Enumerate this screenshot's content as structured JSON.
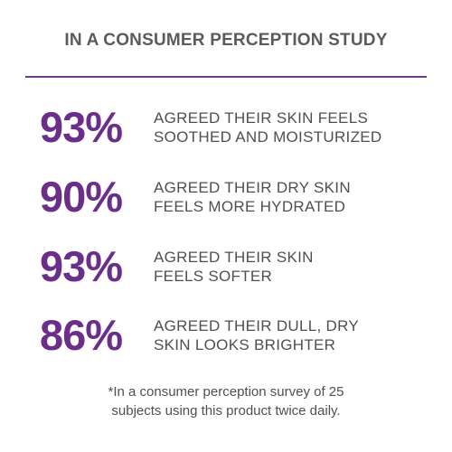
{
  "header": {
    "title": "IN A CONSUMER PERCEPTION STUDY"
  },
  "stats": [
    {
      "value": "93%",
      "text": "AGREED THEIR SKIN FEELS\nSOOTHED AND MOISTURIZED"
    },
    {
      "value": "90%",
      "text": "AGREED THEIR DRY SKIN\nFEELS MORE HYDRATED"
    },
    {
      "value": "93%",
      "text": " AGREED THEIR SKIN\nFEELS SOFTER"
    },
    {
      "value": "86%",
      "text": "AGREED THEIR DULL, DRY\nSKIN LOOKS BRIGHTER"
    }
  ],
  "footnote": "*In a consumer perception survey of 25\nsubjects using this product twice daily.",
  "colors": {
    "accent": "#6b2f8a",
    "text": "#4f4f4f",
    "header": "#5b5b5b"
  }
}
